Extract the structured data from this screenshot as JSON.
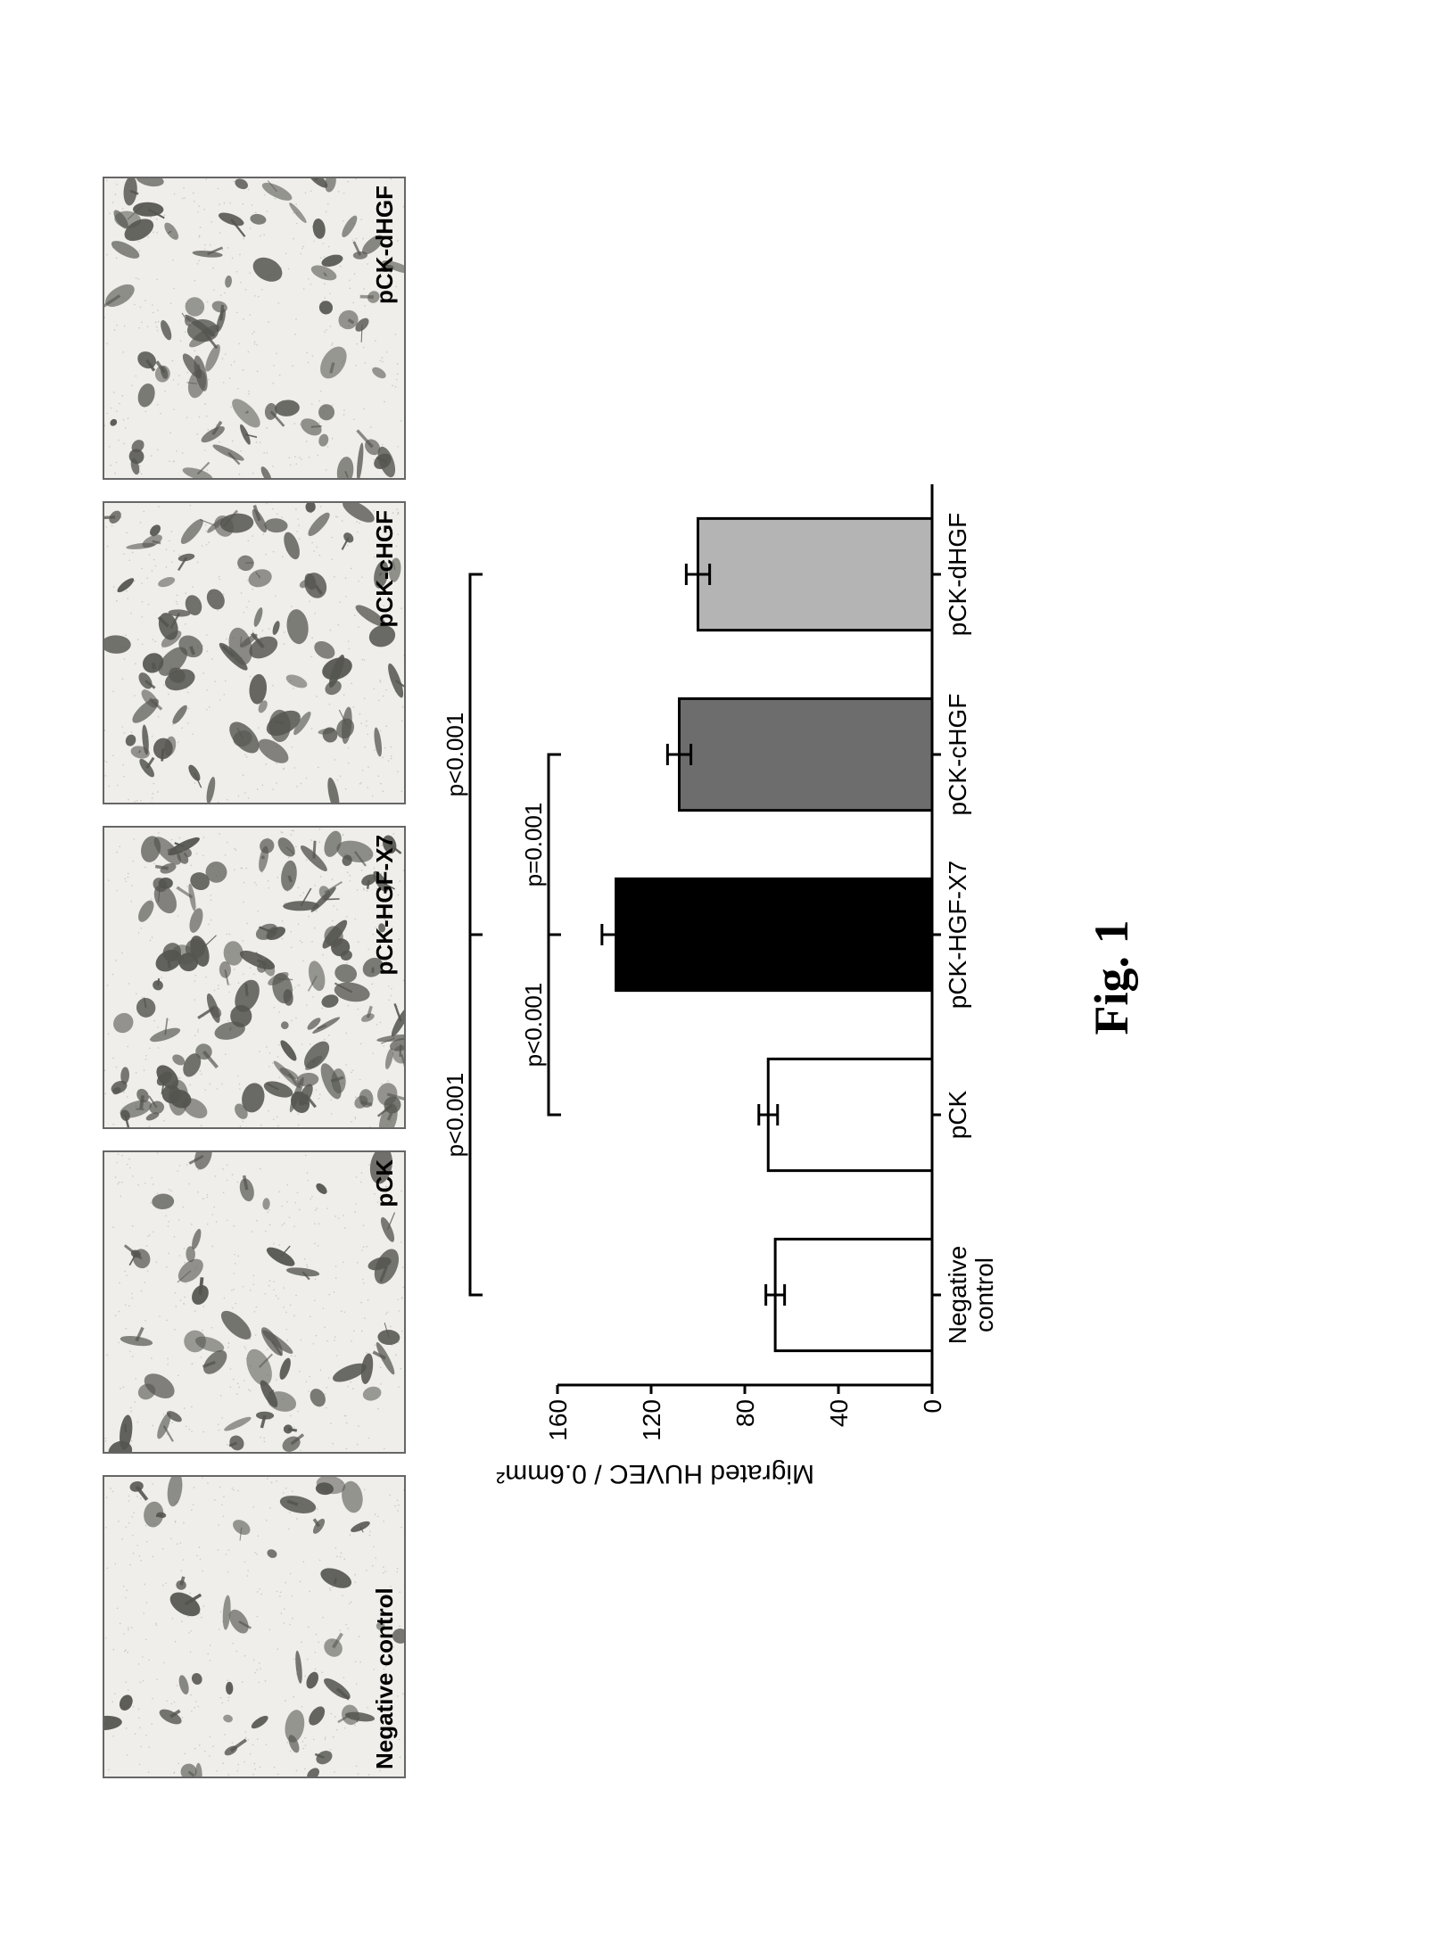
{
  "figure_caption": "Fig. 1",
  "micrographs": {
    "background": "#efeeea",
    "cell_color": "#555550",
    "panels": [
      {
        "label": "Negative control",
        "label_side": "left",
        "density": 0.22
      },
      {
        "label": "pCK",
        "label_side": "right",
        "density": 0.25
      },
      {
        "label": "pCK-HGF-X7",
        "label_side": "right",
        "density": 0.7
      },
      {
        "label": "pCK-cHGF",
        "label_side": "right",
        "density": 0.48
      },
      {
        "label": "pCK-dHGF",
        "label_side": "right",
        "density": 0.42
      }
    ]
  },
  "chart": {
    "type": "bar",
    "y_axis_label": "Migrated HUVEC / 0.6mm²",
    "ylim": [
      0,
      160
    ],
    "ytick_step": 40,
    "yticks": [
      0,
      40,
      80,
      120,
      160
    ],
    "background_color": "#ffffff",
    "axis_color": "#000000",
    "label_fontsize": 28,
    "bar_width": 0.62,
    "categories": [
      "Negative\ncontrol",
      "pCK",
      "pCK-HGF-X7",
      "pCK-cHGF",
      "pCK-dHGF"
    ],
    "values": [
      67,
      70,
      135,
      108,
      100
    ],
    "errors": [
      4,
      4,
      6,
      5,
      5
    ],
    "bar_fill": [
      "#ffffff",
      "#ffffff",
      "#000000",
      "#6d6d6d",
      "#b4b4b4"
    ],
    "bar_stroke": [
      "#000000",
      "#000000",
      "#000000",
      "#000000",
      "#000000"
    ],
    "significance": [
      {
        "from": 0,
        "to": 2,
        "label": "p<0.001",
        "level": 3
      },
      {
        "from": 2,
        "to": 4,
        "label": "p<0.001",
        "level": 3
      },
      {
        "from": 1,
        "to": 2,
        "label": "p<0.001",
        "level": 1
      },
      {
        "from": 2,
        "to": 3,
        "label": "p=0.001",
        "level": 1
      }
    ]
  }
}
